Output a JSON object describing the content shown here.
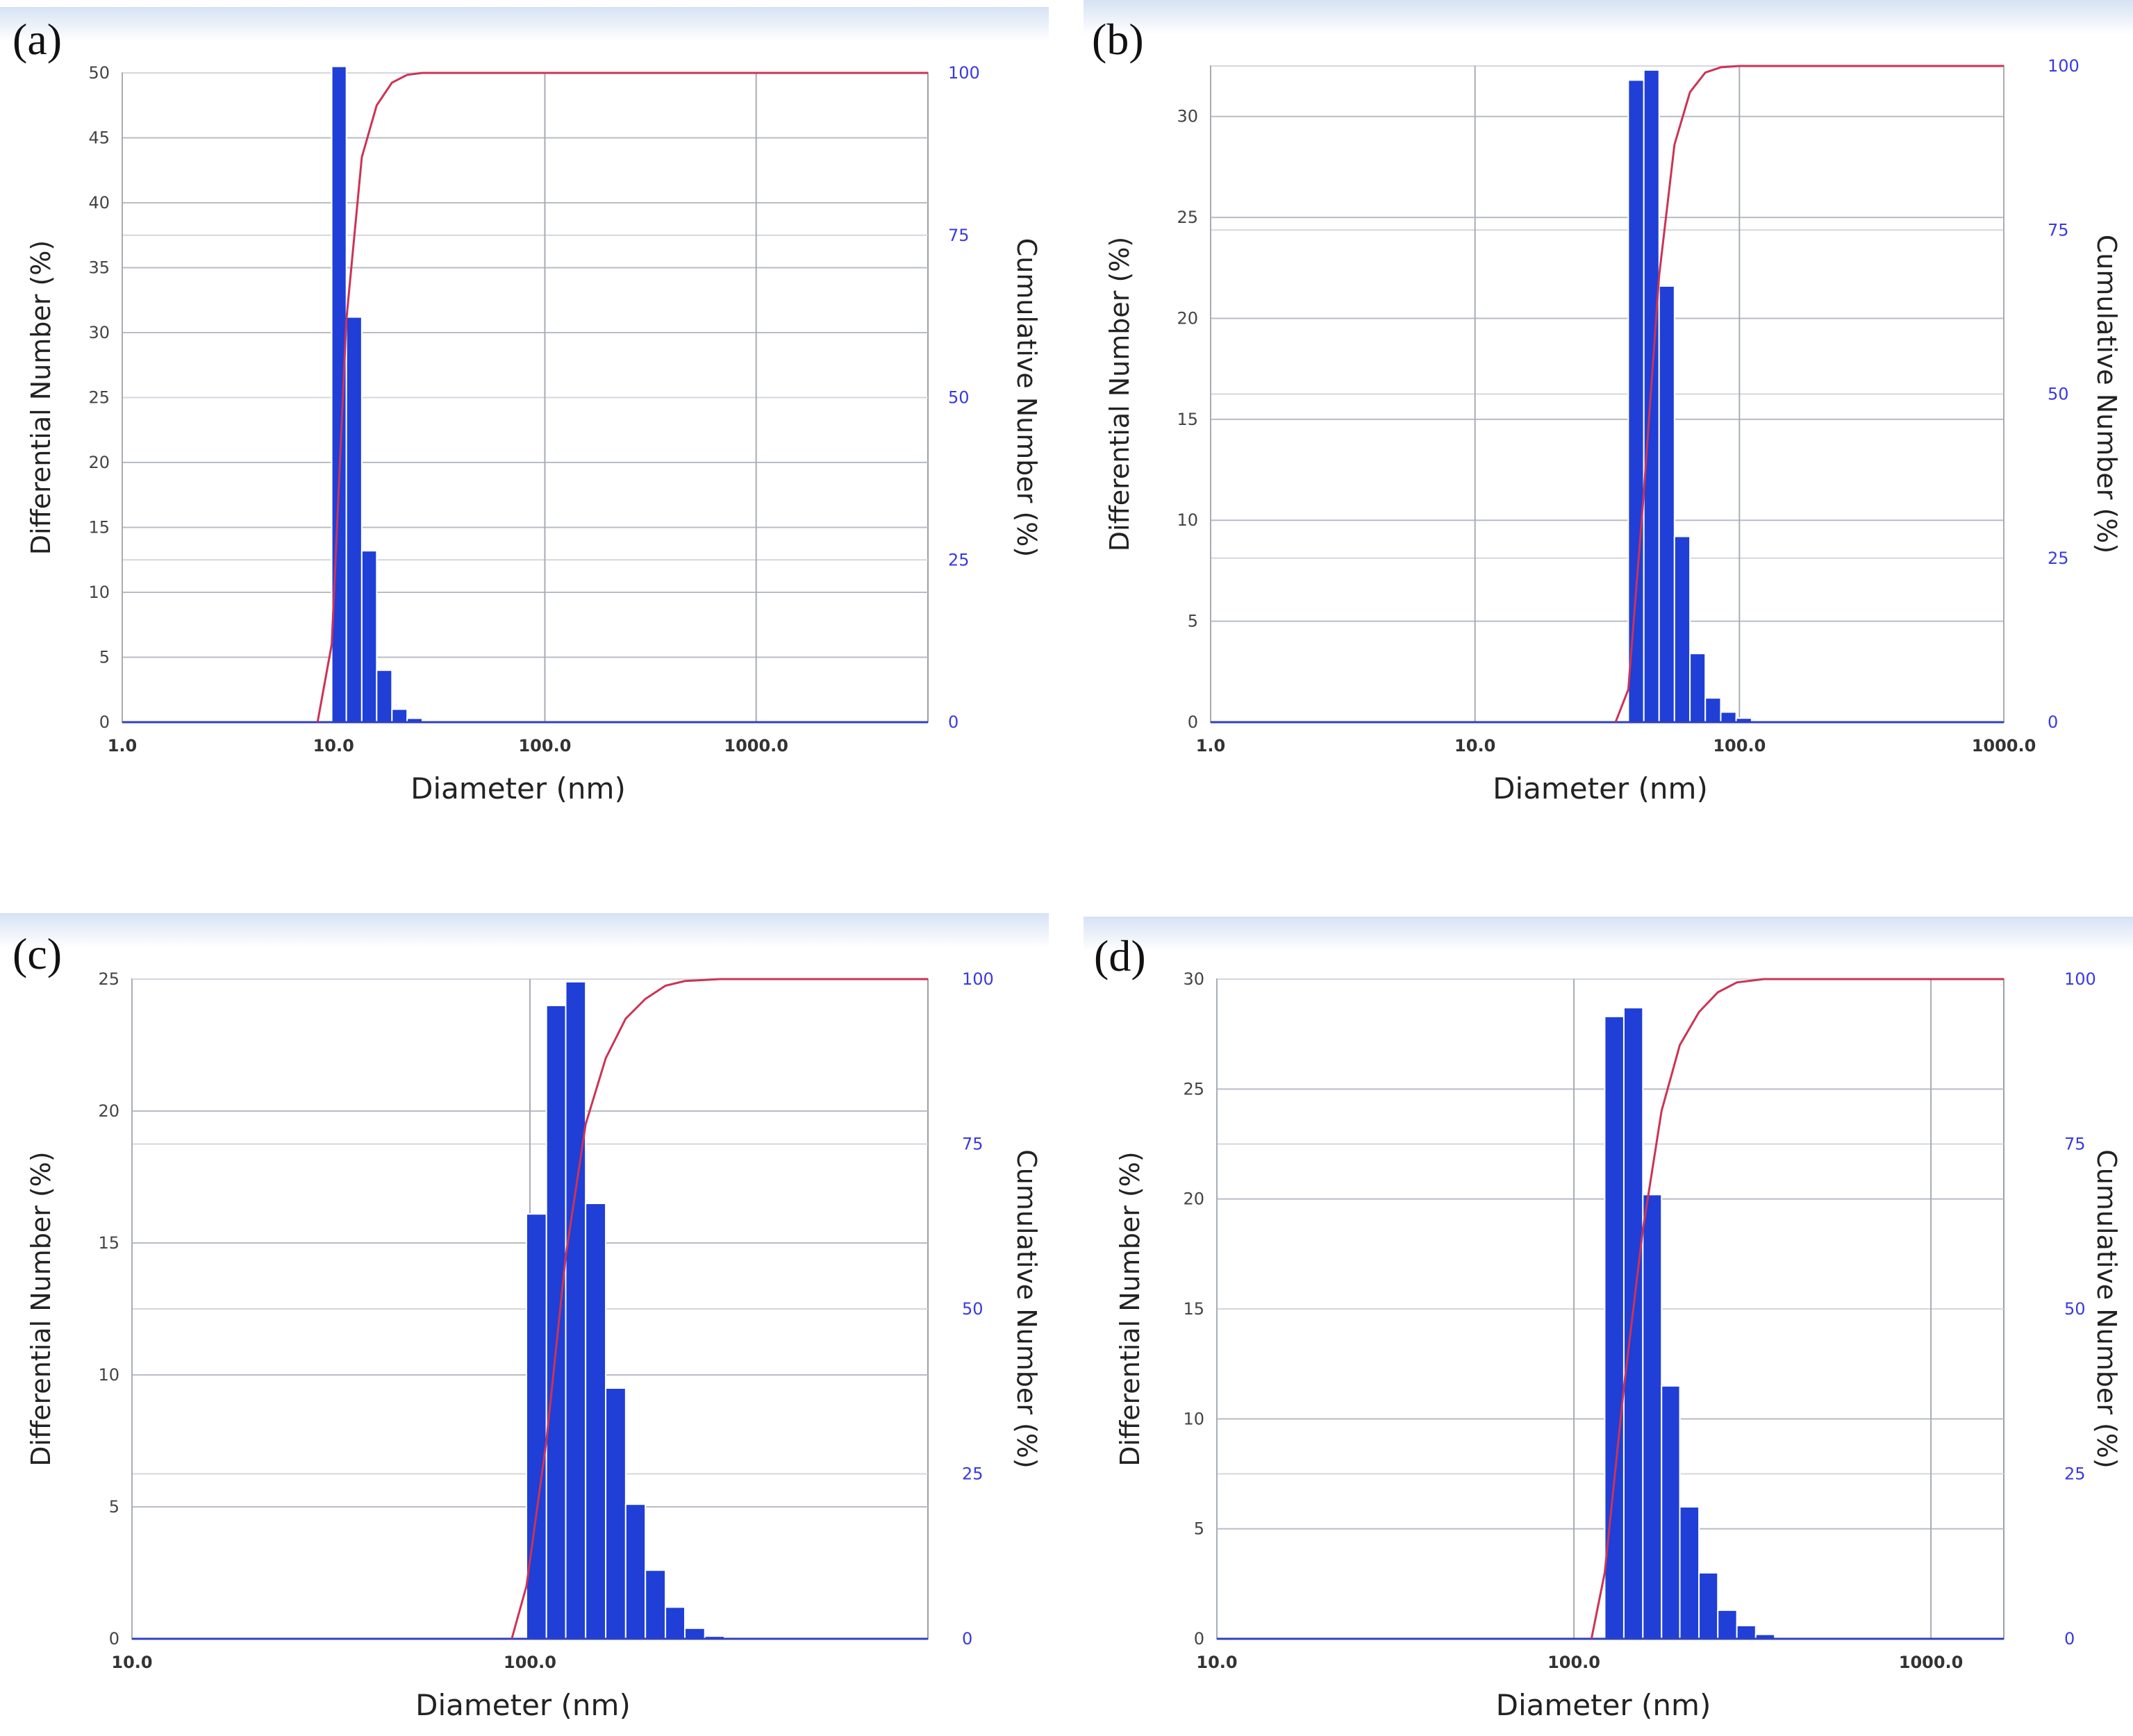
{
  "chart_data": [
    {
      "type": "bar",
      "panel_label": "(a)",
      "xlabel": "Diameter (nm)",
      "ylabel": "Differential Number (%)",
      "y2label": "Cumulative Number (%)",
      "x_scale": "log",
      "xlim": [
        1,
        6500
      ],
      "ylim": [
        0,
        50
      ],
      "y2lim": [
        0,
        100
      ],
      "x_ticks": [
        "1.0",
        "10.0",
        "100.0",
        "1000.0"
      ],
      "y_ticks": [
        "0",
        "5",
        "10",
        "15",
        "20",
        "25",
        "30",
        "35",
        "40",
        "45",
        "50"
      ],
      "y2_ticks": [
        "0",
        "25",
        "50",
        "75",
        "100"
      ],
      "bar_color": "#1f3fd6",
      "curve_color": "#cc3355",
      "grid": true,
      "bars": [
        {
          "x0": 9.8,
          "x1": 11.5,
          "value": 50.5
        },
        {
          "x0": 11.5,
          "x1": 13.6,
          "value": 31.2
        },
        {
          "x0": 13.6,
          "x1": 16.0,
          "value": 13.2
        },
        {
          "x0": 16.0,
          "x1": 18.9,
          "value": 4.0
        },
        {
          "x0": 18.9,
          "x1": 22.3,
          "value": 1.0
        },
        {
          "x0": 22.3,
          "x1": 26.3,
          "value": 0.3
        }
      ],
      "cumulative": [
        [
          8.4,
          0
        ],
        [
          9.8,
          12
        ],
        [
          11.5,
          62
        ],
        [
          13.6,
          87
        ],
        [
          16.0,
          95
        ],
        [
          18.9,
          98.5
        ],
        [
          22.3,
          99.7
        ],
        [
          26.3,
          100
        ],
        [
          6500,
          100
        ]
      ]
    },
    {
      "type": "bar",
      "panel_label": "(b)",
      "xlabel": "Diameter (nm)",
      "ylabel": "Differential Number (%)",
      "y2label": "Cumulative Number (%)",
      "x_scale": "log",
      "xlim": [
        1,
        1000
      ],
      "ylim": [
        0,
        32.5
      ],
      "y2lim": [
        0,
        100
      ],
      "x_ticks": [
        "1.0",
        "10.0",
        "100.0",
        "1000.0"
      ],
      "y_ticks": [
        "0",
        "5",
        "10",
        "15",
        "20",
        "25",
        "30"
      ],
      "y2_ticks": [
        "0",
        "25",
        "50",
        "75",
        "100"
      ],
      "bar_color": "#1f3fd6",
      "curve_color": "#cc3355",
      "grid": true,
      "bars": [
        {
          "x0": 38.0,
          "x1": 43.5,
          "value": 31.8
        },
        {
          "x0": 43.5,
          "x1": 49.7,
          "value": 32.3
        },
        {
          "x0": 49.7,
          "x1": 56.8,
          "value": 21.6
        },
        {
          "x0": 56.8,
          "x1": 65.0,
          "value": 9.2
        },
        {
          "x0": 65.0,
          "x1": 74.3,
          "value": 3.4
        },
        {
          "x0": 74.3,
          "x1": 85.0,
          "value": 1.2
        },
        {
          "x0": 85.0,
          "x1": 97.2,
          "value": 0.5
        },
        {
          "x0": 97.2,
          "x1": 111.2,
          "value": 0.2
        }
      ],
      "cumulative": [
        [
          34,
          0
        ],
        [
          38,
          5
        ],
        [
          43.5,
          35
        ],
        [
          49.7,
          68
        ],
        [
          56.8,
          88
        ],
        [
          65.0,
          96
        ],
        [
          74.3,
          99
        ],
        [
          85.0,
          99.8
        ],
        [
          100,
          100
        ],
        [
          1000,
          100
        ]
      ]
    },
    {
      "type": "bar",
      "panel_label": "(c)",
      "xlabel": "Diameter (nm)",
      "ylabel": "Differential Number (%)",
      "y2label": "Cumulative Number (%)",
      "x_scale": "log",
      "xlim": [
        10,
        1000
      ],
      "ylim": [
        0,
        25
      ],
      "y2lim": [
        0,
        100
      ],
      "x_ticks": [
        "10.0",
        "100.0"
      ],
      "y_ticks": [
        "0",
        "5",
        "10",
        "15",
        "20",
        "25"
      ],
      "y2_ticks": [
        "0",
        "25",
        "50",
        "75",
        "100"
      ],
      "bar_color": "#1f3fd6",
      "curve_color": "#cc3355",
      "grid": true,
      "bars": [
        {
          "x0": 98,
          "x1": 110,
          "value": 16.1
        },
        {
          "x0": 110,
          "x1": 123,
          "value": 24.0
        },
        {
          "x0": 123,
          "x1": 138,
          "value": 24.9
        },
        {
          "x0": 138,
          "x1": 155,
          "value": 16.5
        },
        {
          "x0": 155,
          "x1": 174,
          "value": 9.5
        },
        {
          "x0": 174,
          "x1": 195,
          "value": 5.1
        },
        {
          "x0": 195,
          "x1": 219,
          "value": 2.6
        },
        {
          "x0": 219,
          "x1": 245,
          "value": 1.2
        },
        {
          "x0": 245,
          "x1": 275,
          "value": 0.4
        },
        {
          "x0": 275,
          "x1": 308,
          "value": 0.1
        }
      ],
      "cumulative": [
        [
          90,
          0
        ],
        [
          98,
          8
        ],
        [
          110,
          30
        ],
        [
          123,
          58
        ],
        [
          138,
          78
        ],
        [
          155,
          88
        ],
        [
          174,
          94
        ],
        [
          195,
          97
        ],
        [
          219,
          99
        ],
        [
          245,
          99.7
        ],
        [
          300,
          100
        ],
        [
          1000,
          100
        ]
      ]
    },
    {
      "type": "bar",
      "panel_label": "(d)",
      "xlabel": "Diameter (nm)",
      "ylabel": "Differential Number (%)",
      "y2label": "Cumulative Number (%)",
      "x_scale": "log",
      "xlim": [
        10,
        1600
      ],
      "ylim": [
        0,
        30
      ],
      "y2lim": [
        0,
        100
      ],
      "x_ticks": [
        "10.0",
        "100.0",
        "1000.0"
      ],
      "y_ticks": [
        "0",
        "5",
        "10",
        "15",
        "20",
        "25",
        "30"
      ],
      "y2_ticks": [
        "0",
        "25",
        "50",
        "75",
        "100"
      ],
      "bar_color": "#1f3fd6",
      "curve_color": "#cc3355",
      "grid": true,
      "bars": [
        {
          "x0": 122,
          "x1": 138,
          "value": 28.3
        },
        {
          "x0": 138,
          "x1": 156,
          "value": 28.7
        },
        {
          "x0": 156,
          "x1": 176,
          "value": 20.2
        },
        {
          "x0": 176,
          "x1": 198,
          "value": 11.5
        },
        {
          "x0": 198,
          "x1": 224,
          "value": 6.0
        },
        {
          "x0": 224,
          "x1": 253,
          "value": 3.0
        },
        {
          "x0": 253,
          "x1": 286,
          "value": 1.3
        },
        {
          "x0": 286,
          "x1": 323,
          "value": 0.6
        },
        {
          "x0": 323,
          "x1": 365,
          "value": 0.2
        }
      ],
      "cumulative": [
        [
          112,
          0
        ],
        [
          122,
          10
        ],
        [
          138,
          38
        ],
        [
          156,
          62
        ],
        [
          176,
          80
        ],
        [
          198,
          90
        ],
        [
          224,
          95
        ],
        [
          253,
          98
        ],
        [
          286,
          99.5
        ],
        [
          340,
          100
        ],
        [
          1600,
          100
        ]
      ]
    }
  ]
}
